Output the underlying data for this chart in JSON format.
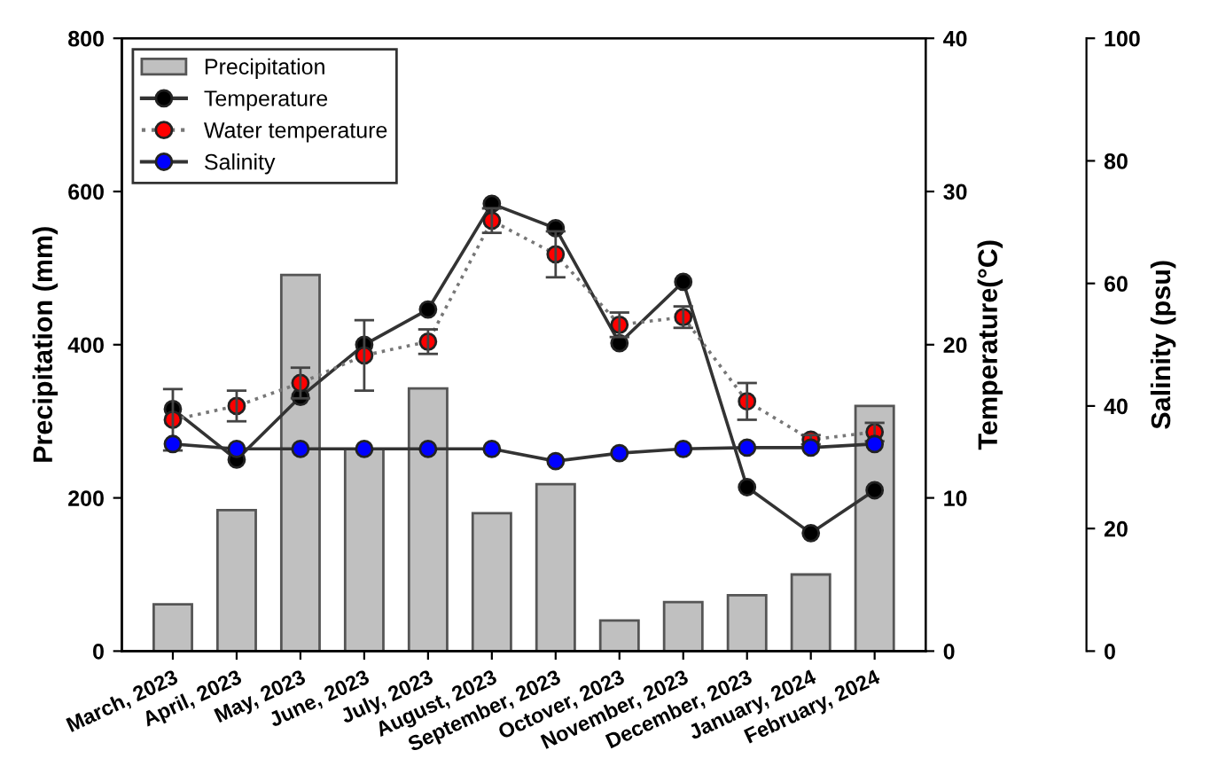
{
  "chart_data": {
    "type": "bar",
    "ylabel": "Precipitation (mm)",
    "y2label": "Temperature(°C)",
    "y3label": "Salinity (psu)",
    "categories": [
      "March, 2023",
      "April, 2023",
      "May, 2023",
      "June, 2023",
      "July, 2023",
      "August, 2023",
      "September, 2023",
      "Octover, 2023",
      "November, 2023",
      "December, 2023",
      "January, 2024",
      "February, 2024"
    ],
    "series": [
      {
        "name": "Precipitation",
        "color": "#c0c0c0",
        "values": [
          61,
          184,
          491,
          264,
          343,
          180,
          218,
          40,
          64,
          73,
          100,
          320
        ]
      },
      {
        "name": "Temperature",
        "type": "line",
        "axis": "y2",
        "color": "#000000",
        "line_style": "solid",
        "values": [
          15.8,
          12.5,
          16.6,
          20.0,
          22.3,
          29.2,
          27.6,
          20.1,
          24.1,
          10.7,
          7.7,
          10.5
        ]
      },
      {
        "name": "Water temperature",
        "type": "line",
        "axis": "y2",
        "color": "#ff0000",
        "line_style": "dotted",
        "values": [
          15.1,
          16.0,
          17.5,
          19.3,
          20.2,
          28.1,
          25.9,
          21.3,
          21.8,
          16.3,
          13.8,
          14.3
        ],
        "errors": [
          2.0,
          1.0,
          1.0,
          2.3,
          0.8,
          0.8,
          1.5,
          0.8,
          0.7,
          1.2,
          0.3,
          0.6
        ]
      },
      {
        "name": "Salinity",
        "type": "line",
        "axis": "y3",
        "color": "#0000ff",
        "line_style": "solid",
        "values": [
          33.8,
          33.0,
          33.0,
          33.0,
          33.0,
          33.0,
          31.0,
          32.3,
          33.0,
          33.2,
          33.2,
          33.8
        ]
      }
    ],
    "ylim": [
      0,
      800
    ],
    "yticks": [
      0,
      200,
      400,
      600,
      800
    ],
    "y2lim": [
      0,
      40
    ],
    "y2ticks": [
      0,
      10,
      20,
      30,
      40
    ],
    "y3lim": [
      0,
      100
    ],
    "y3ticks": [
      0,
      20,
      40,
      60,
      80,
      100
    ],
    "marker": "circle",
    "legend": "top left",
    "grid": false
  }
}
